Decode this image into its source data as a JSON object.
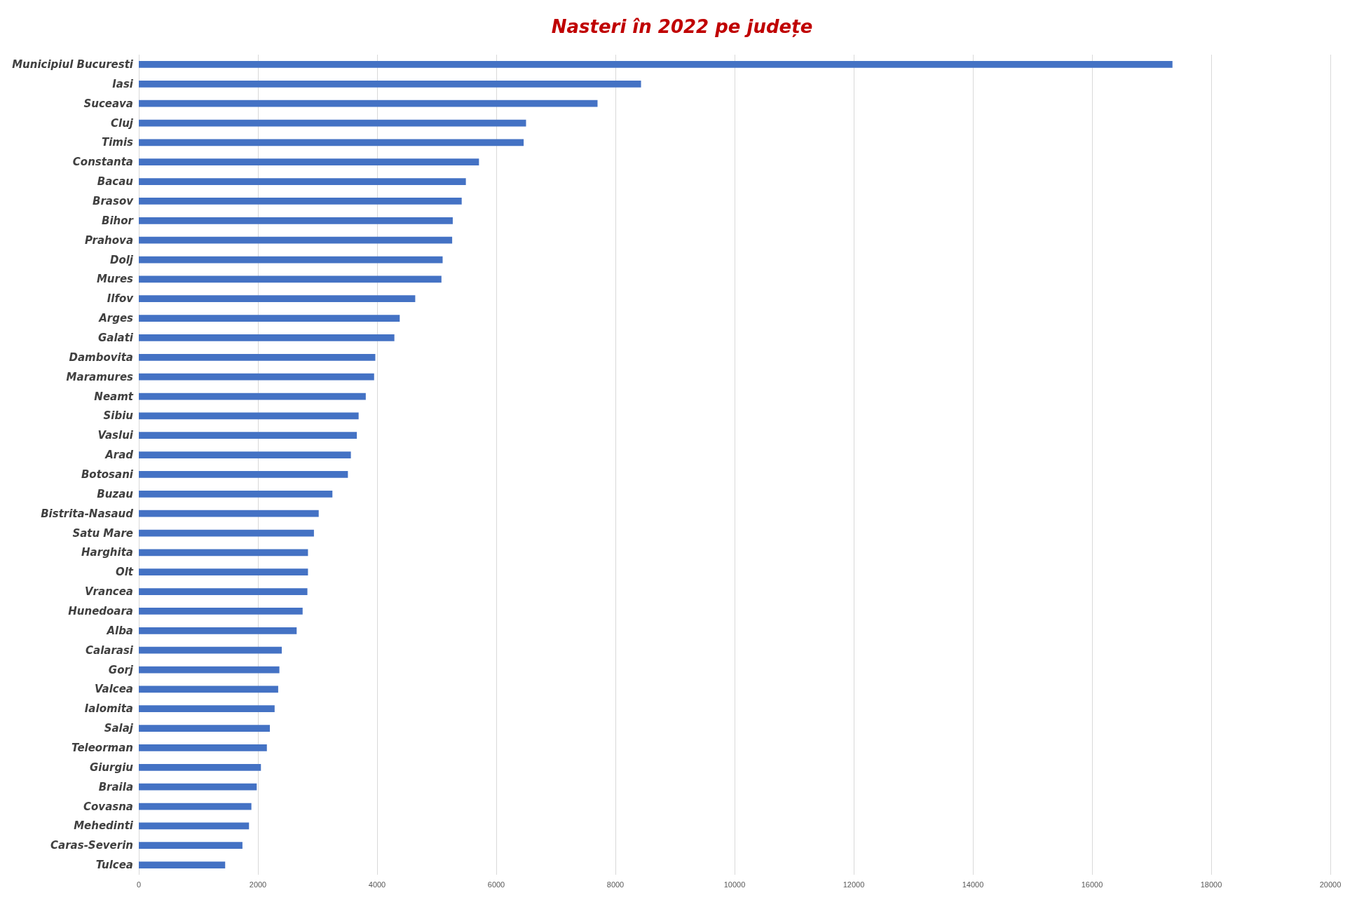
{
  "chart_data": {
    "type": "bar",
    "orientation": "horizontal",
    "title": "Nasteri în 2022 pe județe",
    "color": "#4472c4",
    "grid": "x",
    "categories": [
      "Municipiul Bucuresti",
      "Iasi",
      "Suceava",
      "Cluj",
      "Timis",
      "Constanta",
      "Bacau",
      "Brasov",
      "Bihor",
      "Prahova",
      "Dolj",
      "Mures",
      "Ilfov",
      "Arges",
      "Galati",
      "Dambovita",
      "Maramures",
      "Neamt",
      "Sibiu",
      "Vaslui",
      "Arad",
      "Botosani",
      "Buzau",
      "Bistrita-Nasaud",
      "Satu Mare",
      "Harghita",
      "Olt",
      "Vrancea",
      "Hunedoara",
      "Alba",
      "Calarasi",
      "Gorj",
      "Valcea",
      "Ialomita",
      "Salaj",
      "Teleorman",
      "Giurgiu",
      "Braila",
      "Covasna",
      "Mehedinti",
      "Caras-Severin",
      "Tulcea"
    ],
    "values": [
      17350,
      8430,
      7700,
      6500,
      6460,
      5710,
      5490,
      5420,
      5270,
      5260,
      5100,
      5080,
      4640,
      4380,
      4290,
      3970,
      3950,
      3810,
      3690,
      3660,
      3560,
      3510,
      3250,
      3020,
      2940,
      2840,
      2840,
      2830,
      2750,
      2650,
      2400,
      2360,
      2340,
      2280,
      2200,
      2150,
      2050,
      1980,
      1890,
      1850,
      1740,
      1450
    ],
    "xlim": [
      0,
      20000
    ],
    "xticks": [
      0,
      2000,
      4000,
      6000,
      8000,
      10000,
      12000,
      14000,
      16000,
      18000,
      20000
    ]
  }
}
